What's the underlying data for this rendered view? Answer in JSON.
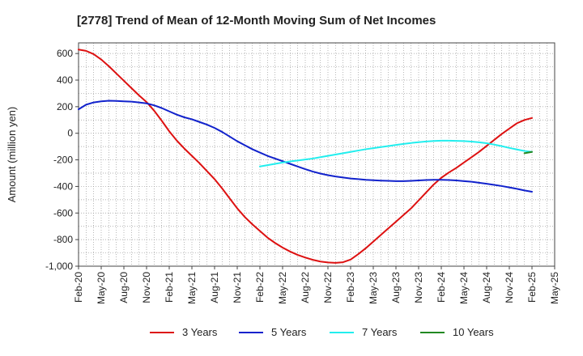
{
  "chart_data": {
    "type": "line",
    "title": "[2778]  Trend of Mean of 12-Month Moving Sum of Net Incomes",
    "xlabel": "",
    "ylabel": "Amount (million yen)",
    "ylim": [
      -1000,
      680
    ],
    "yticks": [
      600,
      400,
      200,
      0,
      -200,
      -400,
      -600,
      -800,
      -1000
    ],
    "ytick_labels": [
      "600",
      "400",
      "200",
      "0",
      "-200",
      "-400",
      "-600",
      "-800",
      "-1,000"
    ],
    "x_start": "Feb-20",
    "x_end": "May-25",
    "xtick_labels": [
      "Feb-20",
      "May-20",
      "Aug-20",
      "Nov-20",
      "Feb-21",
      "May-21",
      "Aug-21",
      "Nov-21",
      "Feb-22",
      "May-22",
      "Aug-22",
      "Nov-22",
      "Feb-23",
      "May-23",
      "Aug-23",
      "Nov-23",
      "Feb-24",
      "May-24",
      "Aug-24",
      "Nov-24",
      "Feb-25",
      "May-25"
    ],
    "grid": true,
    "legend_position": "bottom",
    "series": [
      {
        "name": "3 Years",
        "color": "#dd1111",
        "points": [
          [
            "Feb-20",
            630
          ],
          [
            "Mar-20",
            620
          ],
          [
            "Apr-20",
            595
          ],
          [
            "May-20",
            555
          ],
          [
            "Jun-20",
            505
          ],
          [
            "Jul-20",
            450
          ],
          [
            "Aug-20",
            395
          ],
          [
            "Sep-20",
            340
          ],
          [
            "Oct-20",
            285
          ],
          [
            "Nov-20",
            235
          ],
          [
            "Dec-20",
            170
          ],
          [
            "Jan-21",
            95
          ],
          [
            "Feb-21",
            15
          ],
          [
            "Mar-21",
            -55
          ],
          [
            "Apr-21",
            -115
          ],
          [
            "May-21",
            -170
          ],
          [
            "Jun-21",
            -225
          ],
          [
            "Jul-21",
            -285
          ],
          [
            "Aug-21",
            -345
          ],
          [
            "Sep-21",
            -415
          ],
          [
            "Oct-21",
            -490
          ],
          [
            "Nov-21",
            -565
          ],
          [
            "Dec-21",
            -630
          ],
          [
            "Jan-22",
            -685
          ],
          [
            "Feb-22",
            -735
          ],
          [
            "Mar-22",
            -785
          ],
          [
            "Apr-22",
            -825
          ],
          [
            "May-22",
            -860
          ],
          [
            "Jun-22",
            -890
          ],
          [
            "Jul-22",
            -915
          ],
          [
            "Aug-22",
            -935
          ],
          [
            "Sep-22",
            -952
          ],
          [
            "Oct-22",
            -965
          ],
          [
            "Nov-22",
            -972
          ],
          [
            "Dec-22",
            -975
          ],
          [
            "Jan-23",
            -970
          ],
          [
            "Feb-23",
            -950
          ],
          [
            "Mar-23",
            -910
          ],
          [
            "Apr-23",
            -865
          ],
          [
            "May-23",
            -815
          ],
          [
            "Jun-23",
            -765
          ],
          [
            "Jul-23",
            -715
          ],
          [
            "Aug-23",
            -665
          ],
          [
            "Sep-23",
            -615
          ],
          [
            "Oct-23",
            -565
          ],
          [
            "Nov-23",
            -505
          ],
          [
            "Dec-23",
            -445
          ],
          [
            "Jan-24",
            -385
          ],
          [
            "Feb-24",
            -335
          ],
          [
            "Mar-24",
            -295
          ],
          [
            "Apr-24",
            -260
          ],
          [
            "May-24",
            -220
          ],
          [
            "Jun-24",
            -180
          ],
          [
            "Jul-24",
            -140
          ],
          [
            "Aug-24",
            -95
          ],
          [
            "Sep-24",
            -50
          ],
          [
            "Oct-24",
            -5
          ],
          [
            "Nov-24",
            35
          ],
          [
            "Dec-24",
            75
          ],
          [
            "Jan-25",
            100
          ],
          [
            "Feb-25",
            115
          ]
        ]
      },
      {
        "name": "5 Years",
        "color": "#1122cc",
        "points": [
          [
            "Feb-20",
            180
          ],
          [
            "Mar-20",
            215
          ],
          [
            "Apr-20",
            232
          ],
          [
            "May-20",
            240
          ],
          [
            "Jun-20",
            245
          ],
          [
            "Jul-20",
            243
          ],
          [
            "Aug-20",
            240
          ],
          [
            "Sep-20",
            238
          ],
          [
            "Oct-20",
            232
          ],
          [
            "Nov-20",
            225
          ],
          [
            "Dec-20",
            210
          ],
          [
            "Jan-21",
            190
          ],
          [
            "Feb-21",
            165
          ],
          [
            "Mar-21",
            140
          ],
          [
            "Apr-21",
            120
          ],
          [
            "May-21",
            105
          ],
          [
            "Jun-21",
            85
          ],
          [
            "Jul-21",
            65
          ],
          [
            "Aug-21",
            40
          ],
          [
            "Sep-21",
            10
          ],
          [
            "Oct-21",
            -25
          ],
          [
            "Nov-21",
            -60
          ],
          [
            "Dec-21",
            -90
          ],
          [
            "Jan-22",
            -120
          ],
          [
            "Feb-22",
            -145
          ],
          [
            "Mar-22",
            -170
          ],
          [
            "Apr-22",
            -190
          ],
          [
            "May-22",
            -210
          ],
          [
            "Jun-22",
            -230
          ],
          [
            "Jul-22",
            -250
          ],
          [
            "Aug-22",
            -270
          ],
          [
            "Sep-22",
            -288
          ],
          [
            "Oct-22",
            -303
          ],
          [
            "Nov-22",
            -315
          ],
          [
            "Dec-22",
            -325
          ],
          [
            "Jan-23",
            -333
          ],
          [
            "Feb-23",
            -340
          ],
          [
            "Mar-23",
            -345
          ],
          [
            "Apr-23",
            -350
          ],
          [
            "May-23",
            -353
          ],
          [
            "Jun-23",
            -356
          ],
          [
            "Jul-23",
            -358
          ],
          [
            "Aug-23",
            -360
          ],
          [
            "Sep-23",
            -360
          ],
          [
            "Oct-23",
            -358
          ],
          [
            "Nov-23",
            -355
          ],
          [
            "Dec-23",
            -352
          ],
          [
            "Jan-24",
            -350
          ],
          [
            "Feb-24",
            -350
          ],
          [
            "Mar-24",
            -352
          ],
          [
            "Apr-24",
            -355
          ],
          [
            "May-24",
            -360
          ],
          [
            "Jun-24",
            -365
          ],
          [
            "Jul-24",
            -372
          ],
          [
            "Aug-24",
            -380
          ],
          [
            "Sep-24",
            -388
          ],
          [
            "Oct-24",
            -397
          ],
          [
            "Nov-24",
            -407
          ],
          [
            "Dec-24",
            -418
          ],
          [
            "Jan-25",
            -430
          ],
          [
            "Feb-25",
            -440
          ]
        ]
      },
      {
        "name": "7 Years",
        "color": "#22eeee",
        "points": [
          [
            "Feb-22",
            -250
          ],
          [
            "Mar-22",
            -240
          ],
          [
            "Apr-22",
            -230
          ],
          [
            "May-22",
            -220
          ],
          [
            "Jun-22",
            -212
          ],
          [
            "Jul-22",
            -205
          ],
          [
            "Aug-22",
            -197
          ],
          [
            "Sep-22",
            -190
          ],
          [
            "Oct-22",
            -180
          ],
          [
            "Nov-22",
            -170
          ],
          [
            "Dec-22",
            -160
          ],
          [
            "Jan-23",
            -150
          ],
          [
            "Feb-23",
            -140
          ],
          [
            "Mar-23",
            -130
          ],
          [
            "Apr-23",
            -120
          ],
          [
            "May-23",
            -112
          ],
          [
            "Jun-23",
            -104
          ],
          [
            "Jul-23",
            -96
          ],
          [
            "Aug-23",
            -88
          ],
          [
            "Sep-23",
            -80
          ],
          [
            "Oct-23",
            -73
          ],
          [
            "Nov-23",
            -67
          ],
          [
            "Dec-23",
            -62
          ],
          [
            "Jan-24",
            -58
          ],
          [
            "Feb-24",
            -56
          ],
          [
            "Mar-24",
            -56
          ],
          [
            "Apr-24",
            -57
          ],
          [
            "May-24",
            -59
          ],
          [
            "Jun-24",
            -63
          ],
          [
            "Jul-24",
            -68
          ],
          [
            "Aug-24",
            -75
          ],
          [
            "Sep-24",
            -85
          ],
          [
            "Oct-24",
            -97
          ],
          [
            "Nov-24",
            -110
          ],
          [
            "Dec-24",
            -122
          ],
          [
            "Jan-25",
            -133
          ],
          [
            "Feb-25",
            -140
          ]
        ]
      },
      {
        "name": "10 Years",
        "color": "#228822",
        "points": [
          [
            "Jan-25",
            -150
          ],
          [
            "Feb-25",
            -140
          ]
        ]
      }
    ]
  }
}
